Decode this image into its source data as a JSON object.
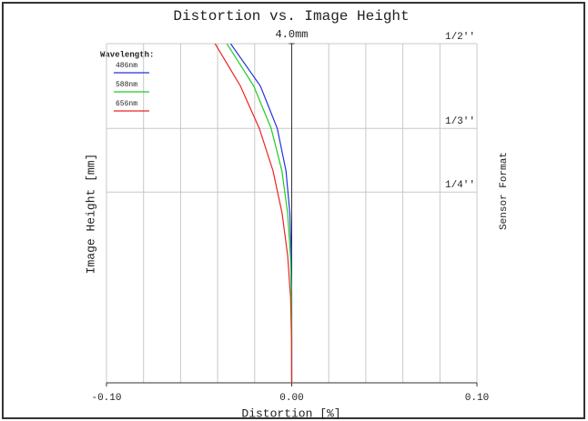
{
  "chart_data": {
    "type": "line",
    "title": "Distortion vs. Image Height",
    "x_label": "Distortion [%]",
    "y_label": "Image Height [mm]",
    "y2_label": "Sensor Format",
    "legend_title": "Wavelength:",
    "legend": "top-left",
    "xlim": [
      -0.1,
      0.1
    ],
    "xticks": [
      {
        "value": -0.1,
        "label": "-0.10"
      },
      {
        "value": 0,
        "label": "0.00"
      },
      {
        "value": 0.1,
        "label": "0.10"
      }
    ],
    "xgrid": [
      -0.1,
      -0.08,
      -0.06,
      -0.04,
      -0.02,
      0,
      0.02,
      0.04,
      0.06,
      0.08,
      0.1
    ],
    "ylim": [
      0,
      4
    ],
    "yticks": [
      {
        "value": 4,
        "label": "4.0mm"
      }
    ],
    "sensor_formats": [
      {
        "value": 4,
        "label": "1/2''"
      },
      {
        "value": 3,
        "label": "1/3''"
      },
      {
        "value": 2.25,
        "label": "1/4''"
      }
    ],
    "heights": [
      0,
      0.5,
      1,
      1.5,
      2,
      2.5,
      3,
      3.5,
      4
    ],
    "series": [
      {
        "name": "486nm",
        "color": "#2233dd",
        "values": [
          0,
          0,
          0,
          -0.0002,
          -0.001,
          -0.0031,
          -0.0078,
          -0.0169,
          -0.033
        ]
      },
      {
        "name": "588nm",
        "color": "#22cc22",
        "values": [
          0,
          0,
          -0.0001,
          -0.0007,
          -0.0022,
          -0.0053,
          -0.0111,
          -0.0205,
          -0.035
        ]
      },
      {
        "name": "656nm",
        "color": "#ee2222",
        "values": [
          0,
          -0.0001,
          -0.0006,
          -0.0022,
          -0.0052,
          -0.0101,
          -0.0175,
          -0.0277,
          -0.0414
        ]
      }
    ]
  }
}
